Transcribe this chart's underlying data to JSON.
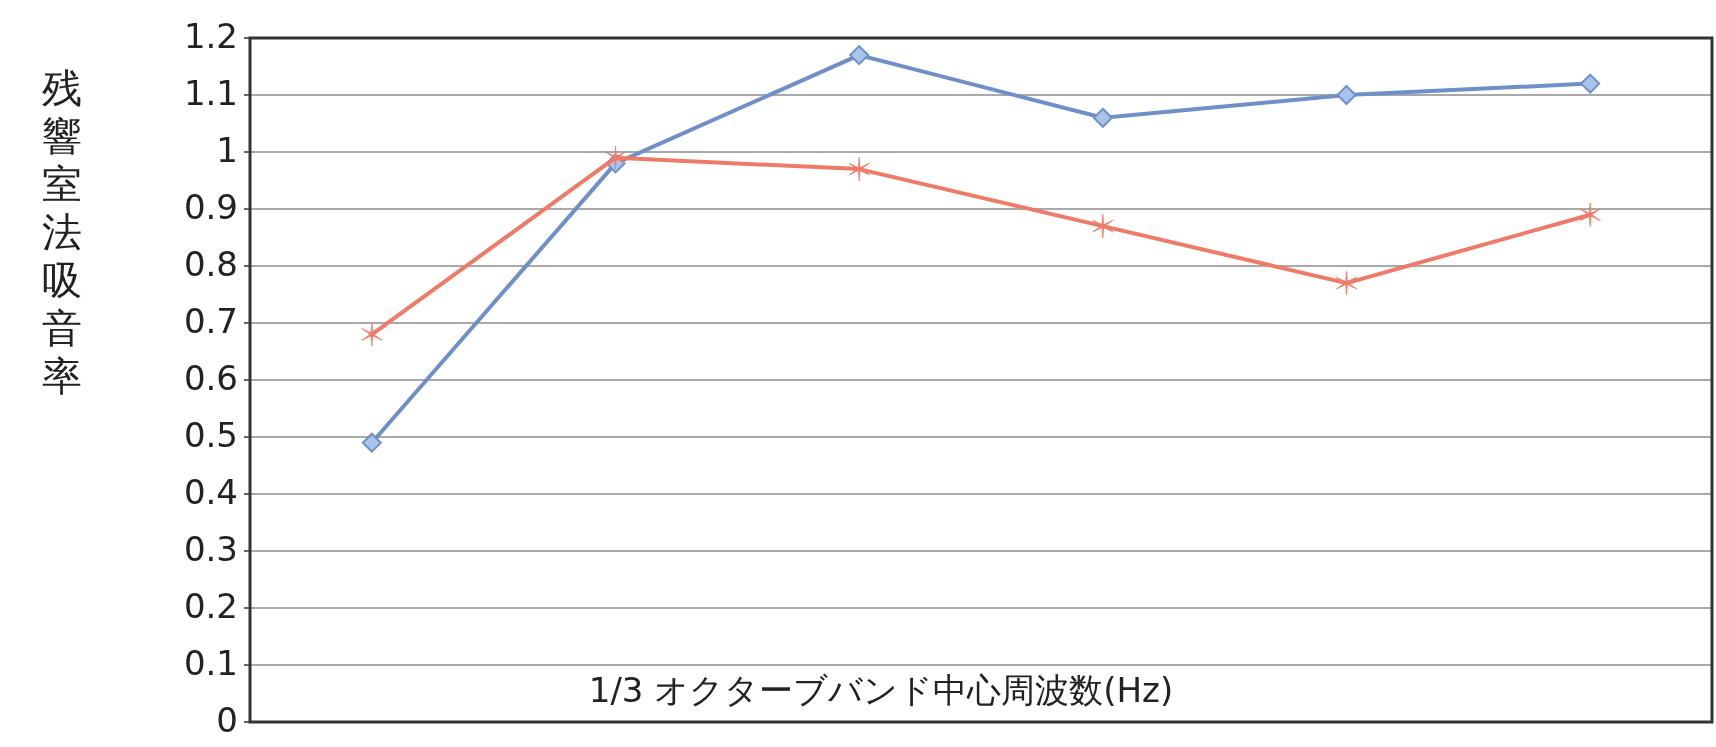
{
  "chart_data": {
    "type": "line",
    "ylabel": "残響室法吸音率",
    "xlabel": "1/3 オクターブバンド中心周波数(Hz)",
    "categories": [
      null,
      null,
      null,
      null,
      null,
      null
    ],
    "series": [
      {
        "color": "#6f8fc8",
        "marker": "diamond",
        "values": [
          0.49,
          0.98,
          1.17,
          1.06,
          1.1,
          1.12
        ]
      },
      {
        "color": "#f07a68",
        "marker": "cross",
        "values": [
          0.68,
          0.99,
          0.97,
          0.87,
          0.77,
          0.89
        ]
      }
    ],
    "ylim": [
      0,
      1.2
    ],
    "yticks": [
      0,
      0.1,
      0.2,
      0.3,
      0.4,
      0.5,
      0.6,
      0.7,
      0.8,
      0.9,
      1,
      1.1,
      1.2
    ],
    "grid": "y",
    "line_style": "solid"
  }
}
